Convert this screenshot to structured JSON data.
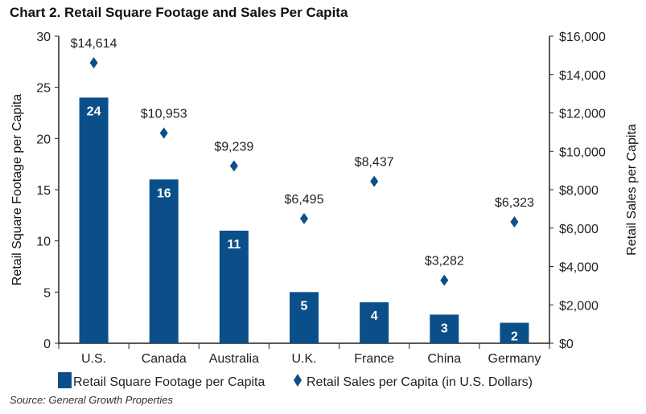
{
  "chart_data": {
    "type": "bar",
    "title": "Chart 2. Retail Square Footage and Sales Per Capita",
    "categories": [
      "U.S.",
      "Canada",
      "Australia",
      "U.K.",
      "France",
      "China",
      "Germany"
    ],
    "series": [
      {
        "name": "Retail Square Footage per Capita",
        "type": "bar",
        "axis": "left",
        "values": [
          24,
          16,
          11,
          5,
          4,
          2.8,
          2
        ],
        "labels": [
          "24",
          "16",
          "11",
          "5",
          "4",
          "3",
          "2"
        ],
        "color": "#0b4f8a"
      },
      {
        "name": "Retail Sales per Capita (in U.S. Dollars)",
        "type": "scatter",
        "marker": "diamond",
        "axis": "right",
        "values": [
          14614,
          10953,
          9239,
          6495,
          8437,
          3282,
          6323
        ],
        "labels": [
          "$14,614",
          "$10,953",
          "$9,239",
          "$6,495",
          "$8,437",
          "$3,282",
          "$6,323"
        ],
        "color": "#0b4f8a"
      }
    ],
    "ylabel": "Retail Square Footage per Capita",
    "ylim": [
      0,
      30
    ],
    "yticks": [
      "0",
      "5",
      "10",
      "15",
      "20",
      "25",
      "30"
    ],
    "y2label": "Retail Sales per Capita",
    "y2lim": [
      0,
      16000
    ],
    "y2ticks": [
      "$0",
      "$2,000",
      "$4,000",
      "$6,000",
      "$8,000",
      "$10,000",
      "$12,000",
      "$14,000",
      "$16,000"
    ],
    "grid": false,
    "legend": "bottom",
    "source": "Source: General Growth Properties"
  }
}
